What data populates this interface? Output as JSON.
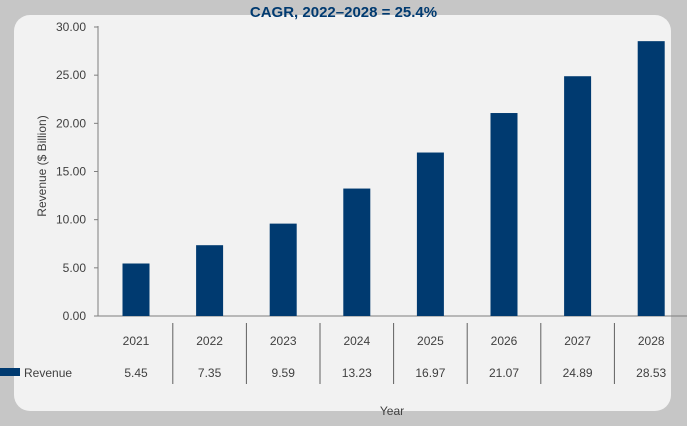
{
  "chart_data": {
    "type": "bar",
    "title": "CAGR, 2022–2028 = 25.4%",
    "xlabel": "Year",
    "ylabel": "Revenue ($ Billion)",
    "ylim": [
      0,
      30
    ],
    "yticks": [
      "0.00",
      "5.00",
      "10.00",
      "15.00",
      "20.00",
      "25.00",
      "30.00"
    ],
    "categories": [
      "2021",
      "2022",
      "2023",
      "2024",
      "2025",
      "2026",
      "2027",
      "2028"
    ],
    "series": [
      {
        "name": "Revenue",
        "values": [
          5.45,
          7.35,
          9.59,
          13.23,
          16.97,
          21.07,
          24.89,
          28.53
        ],
        "labels": [
          "5.45",
          "7.35",
          "9.59",
          "13.23",
          "16.97",
          "21.07",
          "24.89",
          "28.53"
        ],
        "color": "#003a70"
      }
    ],
    "legend": "data-table-left",
    "grid": false
  }
}
